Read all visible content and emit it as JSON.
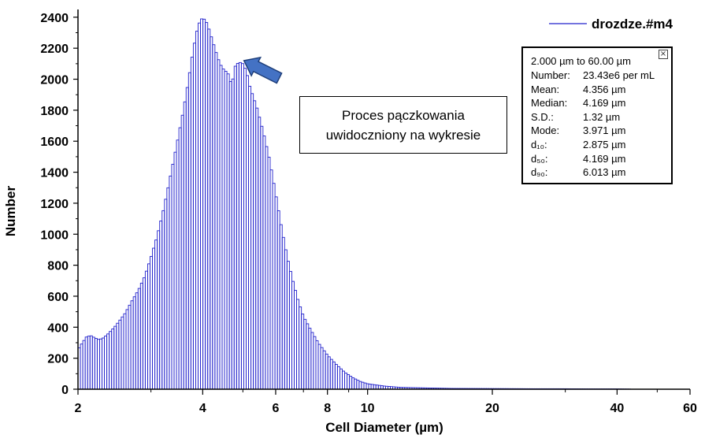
{
  "chart_data": {
    "type": "bar",
    "xlabel": "Cell Diameter (µm)",
    "ylabel": "Number",
    "x_scale": "log",
    "xlim": [
      2,
      60
    ],
    "ylim": [
      0,
      2450
    ],
    "x_ticks": [
      2,
      4,
      6,
      8,
      10,
      20,
      40,
      60
    ],
    "y_ticks": [
      0,
      200,
      400,
      600,
      800,
      1000,
      1200,
      1400,
      1600,
      1800,
      2000,
      2200,
      2400
    ],
    "grid": false,
    "legend_position": "top-right",
    "series": [
      {
        "name": "drozdze.#m4",
        "color": "#2222cc",
        "points": [
          [
            2.0,
            255
          ],
          [
            2.05,
            300
          ],
          [
            2.1,
            340
          ],
          [
            2.15,
            345
          ],
          [
            2.2,
            330
          ],
          [
            2.25,
            320
          ],
          [
            2.3,
            330
          ],
          [
            2.35,
            350
          ],
          [
            2.4,
            375
          ],
          [
            2.45,
            400
          ],
          [
            2.5,
            430
          ],
          [
            2.55,
            460
          ],
          [
            2.6,
            490
          ],
          [
            2.65,
            530
          ],
          [
            2.7,
            570
          ],
          [
            2.8,
            640
          ],
          [
            2.9,
            730
          ],
          [
            3.0,
            850
          ],
          [
            3.1,
            980
          ],
          [
            3.2,
            1130
          ],
          [
            3.3,
            1300
          ],
          [
            3.4,
            1470
          ],
          [
            3.5,
            1640
          ],
          [
            3.6,
            1810
          ],
          [
            3.7,
            2000
          ],
          [
            3.8,
            2200
          ],
          [
            3.9,
            2350
          ],
          [
            4.0,
            2400
          ],
          [
            4.1,
            2360
          ],
          [
            4.2,
            2270
          ],
          [
            4.3,
            2180
          ],
          [
            4.4,
            2100
          ],
          [
            4.5,
            2060
          ],
          [
            4.6,
            2040
          ],
          [
            4.7,
            1960
          ],
          [
            4.8,
            2090
          ],
          [
            4.9,
            2110
          ],
          [
            5.0,
            2100
          ],
          [
            5.1,
            2050
          ],
          [
            5.2,
            1950
          ],
          [
            5.4,
            1820
          ],
          [
            5.6,
            1660
          ],
          [
            5.8,
            1480
          ],
          [
            6.0,
            1260
          ],
          [
            6.2,
            1040
          ],
          [
            6.4,
            850
          ],
          [
            6.6,
            700
          ],
          [
            6.8,
            570
          ],
          [
            7.0,
            470
          ],
          [
            7.3,
            380
          ],
          [
            7.6,
            300
          ],
          [
            8.0,
            220
          ],
          [
            8.4,
            160
          ],
          [
            8.8,
            110
          ],
          [
            9.2,
            75
          ],
          [
            9.6,
            50
          ],
          [
            10.0,
            35
          ],
          [
            11.0,
            20
          ],
          [
            12.0,
            12
          ],
          [
            14.0,
            8
          ],
          [
            16.0,
            5
          ],
          [
            20.0,
            4
          ],
          [
            25.0,
            3
          ],
          [
            30.0,
            3
          ],
          [
            35.0,
            2
          ],
          [
            40.0,
            2
          ],
          [
            43.0,
            1
          ]
        ]
      }
    ]
  },
  "legend": {
    "label": "drozdze.#m4"
  },
  "stats": {
    "range": "2.000 µm to 60.00 µm",
    "close_glyph": "×",
    "rows": [
      {
        "label": "Number:",
        "value": "23.43e6  per mL"
      },
      {
        "label": "Mean:",
        "value": "4.356 µm"
      },
      {
        "label": "Median:",
        "value": "4.169 µm"
      },
      {
        "label": "S.D.:",
        "value": "1.32 µm"
      },
      {
        "label": "Mode:",
        "value": "3.971 µm"
      },
      {
        "label": "d₁₀:",
        "value": "2.875 µm"
      },
      {
        "label": "d₅₀:",
        "value": "4.169 µm"
      },
      {
        "label": "d₉₀:",
        "value": "6.013 µm"
      }
    ]
  },
  "annotation": {
    "line1": "Proces pączkowania",
    "line2": "uwidoczniony na wykresie",
    "arrow_color": "#4472c4",
    "arrow_target": [
      4.9,
      2110
    ]
  }
}
